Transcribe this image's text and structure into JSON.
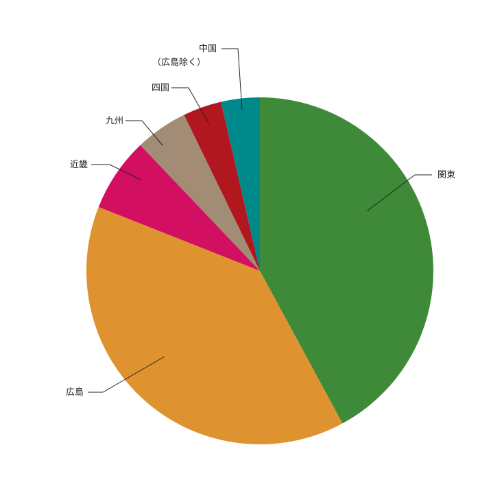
{
  "chart_data": {
    "type": "pie",
    "categories": [
      "関東",
      "広島",
      "近畿",
      "九州",
      "四国",
      "中国\n（広島除く）"
    ],
    "values": [
      42.1,
      38.9,
      6.9,
      4.9,
      3.6,
      3.6
    ],
    "colors": [
      "#3f8a39",
      "#de9330",
      "#d30f62",
      "#a38c76",
      "#b0171e",
      "#00898a"
    ]
  }
}
